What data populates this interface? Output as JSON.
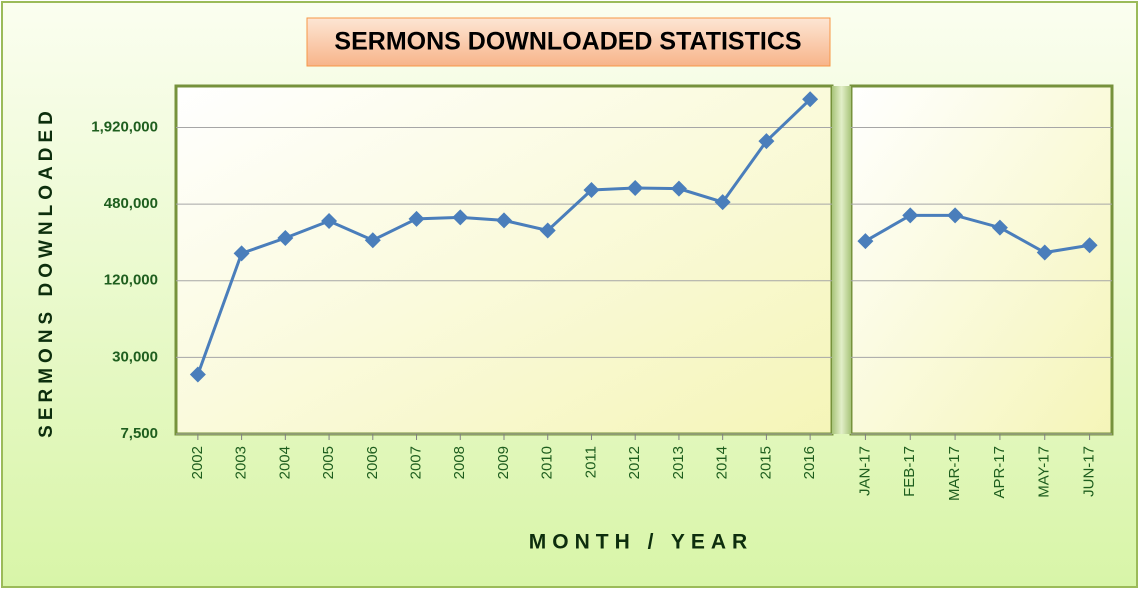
{
  "chart_data": {
    "type": "line",
    "title": "SERMONS DOWNLOADED STATISTICS",
    "ylabel": "SERMONS DOWNLOADED",
    "xlabel": "MONTH / YEAR",
    "log_scale": true,
    "grid": true,
    "color": "#4a7ebb",
    "ylim": [
      7500,
      4070000
    ],
    "yticks": [
      {
        "value": 7500,
        "label": "7,500"
      },
      {
        "value": 30000,
        "label": "30,000"
      },
      {
        "value": 120000,
        "label": "120,000"
      },
      {
        "value": 480000,
        "label": "480,000"
      },
      {
        "value": 1920000,
        "label": "1,920,000"
      }
    ],
    "panels": [
      {
        "categories": [
          "2002",
          "2003",
          "2004",
          "2005",
          "2006",
          "2007",
          "2008",
          "2009",
          "2010",
          "2011",
          "2012",
          "2013",
          "2014",
          "2015",
          "2016"
        ],
        "values": [
          22000,
          197000,
          260000,
          354000,
          250000,
          368000,
          378000,
          358000,
          298000,
          620000,
          643000,
          635000,
          498000,
          1500000,
          3200000
        ]
      },
      {
        "categories": [
          "JAN-17",
          "FEB-17",
          "MAR-17",
          "APR-17",
          "MAY-17",
          "JUN-17"
        ],
        "values": [
          246000,
          392000,
          392000,
          314000,
          200000,
          228000
        ]
      }
    ]
  }
}
